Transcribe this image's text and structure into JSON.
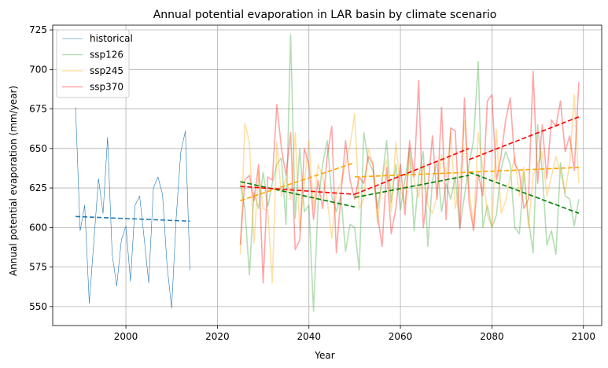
{
  "chart_data": {
    "type": "line",
    "title": "Annual potential evaporation in LAR basin by climate scenario",
    "xlabel": "Year",
    "ylabel": "Annual potential evaporation (mm/year)",
    "xlim": [
      1984,
      2104
    ],
    "ylim": [
      538,
      728
    ],
    "xticks": [
      2000,
      2020,
      2040,
      2060,
      2080,
      2100
    ],
    "yticks": [
      550,
      575,
      600,
      625,
      650,
      675,
      700,
      725
    ],
    "grid": true,
    "legend_position": "top-left",
    "series": [
      {
        "name": "historical",
        "color": "#1f77b4",
        "x": [
          1989,
          1990,
          1991,
          1992,
          1993,
          1994,
          1995,
          1996,
          1997,
          1998,
          1999,
          2000,
          2001,
          2002,
          2003,
          2004,
          2005,
          2006,
          2007,
          2008,
          2009,
          2010,
          2011,
          2012,
          2013,
          2014
        ],
        "y": [
          676,
          598,
          614,
          552,
          591,
          631,
          609,
          657,
          583,
          563,
          592,
          601,
          566,
          614,
          620,
          593,
          565,
          625,
          632,
          621,
          576,
          549,
          607,
          648,
          661,
          573
        ],
        "trend": [
          {
            "x": [
              1989,
              2014
            ],
            "y": [
              607,
              604
            ]
          }
        ]
      },
      {
        "name": "ssp126",
        "color": "#2ca02c",
        "x": [
          2025,
          2026,
          2027,
          2028,
          2029,
          2030,
          2031,
          2032,
          2033,
          2034,
          2035,
          2036,
          2037,
          2038,
          2039,
          2040,
          2041,
          2042,
          2043,
          2044,
          2045,
          2046,
          2047,
          2048,
          2049,
          2050,
          2051,
          2052,
          2053,
          2054,
          2055,
          2056,
          2057,
          2058,
          2059,
          2060,
          2061,
          2062,
          2063,
          2064,
          2065,
          2066,
          2067,
          2068,
          2069,
          2070,
          2071,
          2072,
          2073,
          2074,
          2075,
          2076,
          2077,
          2078,
          2079,
          2080,
          2081,
          2082,
          2083,
          2084,
          2085,
          2086,
          2087,
          2088,
          2089,
          2090,
          2091,
          2092,
          2093,
          2094,
          2095,
          2096,
          2097,
          2098,
          2099
        ],
        "y": [
          628,
          612,
          570,
          622,
          612,
          635,
          613,
          628,
          640,
          644,
          602,
          722,
          606,
          650,
          610,
          614,
          547,
          615,
          640,
          655,
          620,
          610,
          620,
          585,
          602,
          600,
          573,
          660,
          642,
          636,
          612,
          630,
          655,
          616,
          640,
          611,
          630,
          650,
          598,
          632,
          648,
          588,
          630,
          642,
          610,
          628,
          618,
          632,
          600,
          620,
          640,
          655,
          705,
          600,
          614,
          600,
          608,
          637,
          648,
          640,
          600,
          596,
          635,
          605,
          584,
          665,
          636,
          589,
          598,
          583,
          641,
          620,
          618,
          601,
          618
        ],
        "trend": [
          {
            "x": [
              2025,
              2050
            ],
            "y": [
              629,
              613
            ]
          },
          {
            "x": [
              2050,
              2075
            ],
            "y": [
              619,
              633
            ]
          },
          {
            "x": [
              2075,
              2099
            ],
            "y": [
              635,
              609
            ]
          }
        ]
      },
      {
        "name": "ssp245",
        "color": "#ffa500",
        "x": [
          2025,
          2026,
          2027,
          2028,
          2029,
          2030,
          2031,
          2032,
          2033,
          2034,
          2035,
          2036,
          2037,
          2038,
          2039,
          2040,
          2041,
          2042,
          2043,
          2044,
          2045,
          2046,
          2047,
          2048,
          2049,
          2050,
          2051,
          2052,
          2053,
          2054,
          2055,
          2056,
          2057,
          2058,
          2059,
          2060,
          2061,
          2062,
          2063,
          2064,
          2065,
          2066,
          2067,
          2068,
          2069,
          2070,
          2071,
          2072,
          2073,
          2074,
          2075,
          2076,
          2077,
          2078,
          2079,
          2080,
          2081,
          2082,
          2083,
          2084,
          2085,
          2086,
          2087,
          2088,
          2089,
          2090,
          2091,
          2092,
          2093,
          2094,
          2095,
          2096,
          2097,
          2098,
          2099
        ],
        "y": [
          583,
          666,
          654,
          590,
          635,
          612,
          611,
          565,
          654,
          620,
          632,
          618,
          660,
          598,
          628,
          655,
          612,
          640,
          632,
          618,
          593,
          622,
          628,
          640,
          652,
          672,
          612,
          618,
          650,
          640,
          602,
          632,
          643,
          610,
          654,
          624,
          615,
          645,
          630,
          619,
          640,
          614,
          609,
          620,
          646,
          632,
          660,
          612,
          628,
          668,
          625,
          600,
          660,
          637,
          608,
          600,
          662,
          609,
          617,
          632,
          645,
          620,
          638,
          600,
          633,
          640,
          648,
          620,
          632,
          645,
          635,
          622,
          641,
          684,
          628
        ],
        "trend": [
          {
            "x": [
              2025,
              2050
            ],
            "y": [
              617,
              641
            ]
          },
          {
            "x": [
              2050,
              2075
            ],
            "y": [
              632,
              635
            ]
          },
          {
            "x": [
              2075,
              2099
            ],
            "y": [
              635,
              638
            ]
          }
        ]
      },
      {
        "name": "ssp370",
        "color": "#ff0000",
        "x": [
          2025,
          2026,
          2027,
          2028,
          2029,
          2030,
          2031,
          2032,
          2033,
          2034,
          2035,
          2036,
          2037,
          2038,
          2039,
          2040,
          2041,
          2042,
          2043,
          2044,
          2045,
          2046,
          2047,
          2048,
          2049,
          2050,
          2051,
          2052,
          2053,
          2054,
          2055,
          2056,
          2057,
          2058,
          2059,
          2060,
          2061,
          2062,
          2063,
          2064,
          2065,
          2066,
          2067,
          2068,
          2069,
          2070,
          2071,
          2072,
          2073,
          2074,
          2075,
          2076,
          2077,
          2078,
          2079,
          2080,
          2081,
          2082,
          2083,
          2084,
          2085,
          2086,
          2087,
          2088,
          2089,
          2090,
          2091,
          2092,
          2093,
          2094,
          2095,
          2096,
          2097,
          2098,
          2099
        ],
        "y": [
          589,
          630,
          633,
          617,
          640,
          565,
          632,
          630,
          678,
          650,
          633,
          660,
          586,
          592,
          650,
          640,
          605,
          630,
          612,
          645,
          664,
          584,
          620,
          655,
          630,
          618,
          632,
          628,
          645,
          640,
          608,
          588,
          638,
          596,
          612,
          640,
          608,
          655,
          632,
          693,
          600,
          625,
          658,
          618,
          676,
          605,
          663,
          661,
          599,
          682,
          616,
          598,
          634,
          620,
          680,
          684,
          630,
          645,
          668,
          682,
          640,
          635,
          612,
          618,
          699,
          628,
          665,
          631,
          668,
          664,
          680,
          648,
          658,
          636,
          692
        ],
        "trend": [
          {
            "x": [
              2025,
              2050
            ],
            "y": [
              626,
              621
            ]
          },
          {
            "x": [
              2050,
              2075
            ],
            "y": [
              621,
              650
            ]
          },
          {
            "x": [
              2075,
              2099
            ],
            "y": [
              643,
              670
            ]
          }
        ]
      }
    ]
  }
}
